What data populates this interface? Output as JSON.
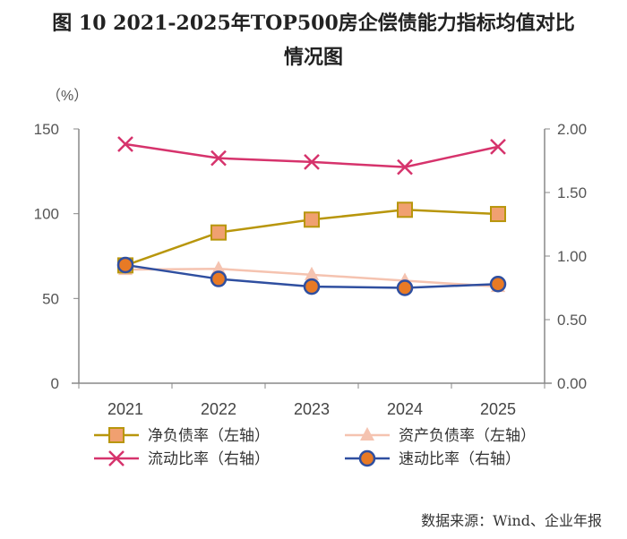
{
  "chart_data": {
    "type": "line",
    "title": "图 10 2021-2025年TOP500房企偿债能力指标均值对比",
    "title_line2": "情况图",
    "y_unit_label": "（%）",
    "categories": [
      "2021",
      "2022",
      "2023",
      "2024",
      "2025"
    ],
    "ylim_left": [
      0,
      150
    ],
    "yticks_left": [
      "0",
      "50",
      "100",
      "150"
    ],
    "ylim_right": [
      0,
      2
    ],
    "yticks_right": [
      "0.00",
      "0.50",
      "1.00",
      "1.50",
      "2.00"
    ],
    "grid": false,
    "legend_placement": "bottom",
    "series": [
      {
        "name": "净负债率（左轴）",
        "axis": "left",
        "marker": "square",
        "color": "#b8960c",
        "fill": "#f0a070",
        "values": [
          69.5,
          88.9,
          96.5,
          102.3,
          99.8
        ]
      },
      {
        "name": "资产负债率（左轴）",
        "axis": "left",
        "marker": "triangle",
        "color": "#f5c3b0",
        "fill": "#f5c3b0",
        "values": [
          67,
          67.5,
          64,
          60.5,
          57
        ]
      },
      {
        "name": "流动比率（右轴）",
        "axis": "right",
        "marker": "x",
        "color": "#d6336c",
        "fill": "#d6336c",
        "values": [
          1.88,
          1.77,
          1.74,
          1.7,
          1.86
        ]
      },
      {
        "name": "速动比率（右轴）",
        "axis": "right",
        "marker": "circle",
        "color": "#2f4fa0",
        "fill": "#e87a25",
        "values": [
          0.93,
          0.82,
          0.76,
          0.75,
          0.78
        ]
      }
    ]
  },
  "source": "数据来源：Wind、企业年报"
}
